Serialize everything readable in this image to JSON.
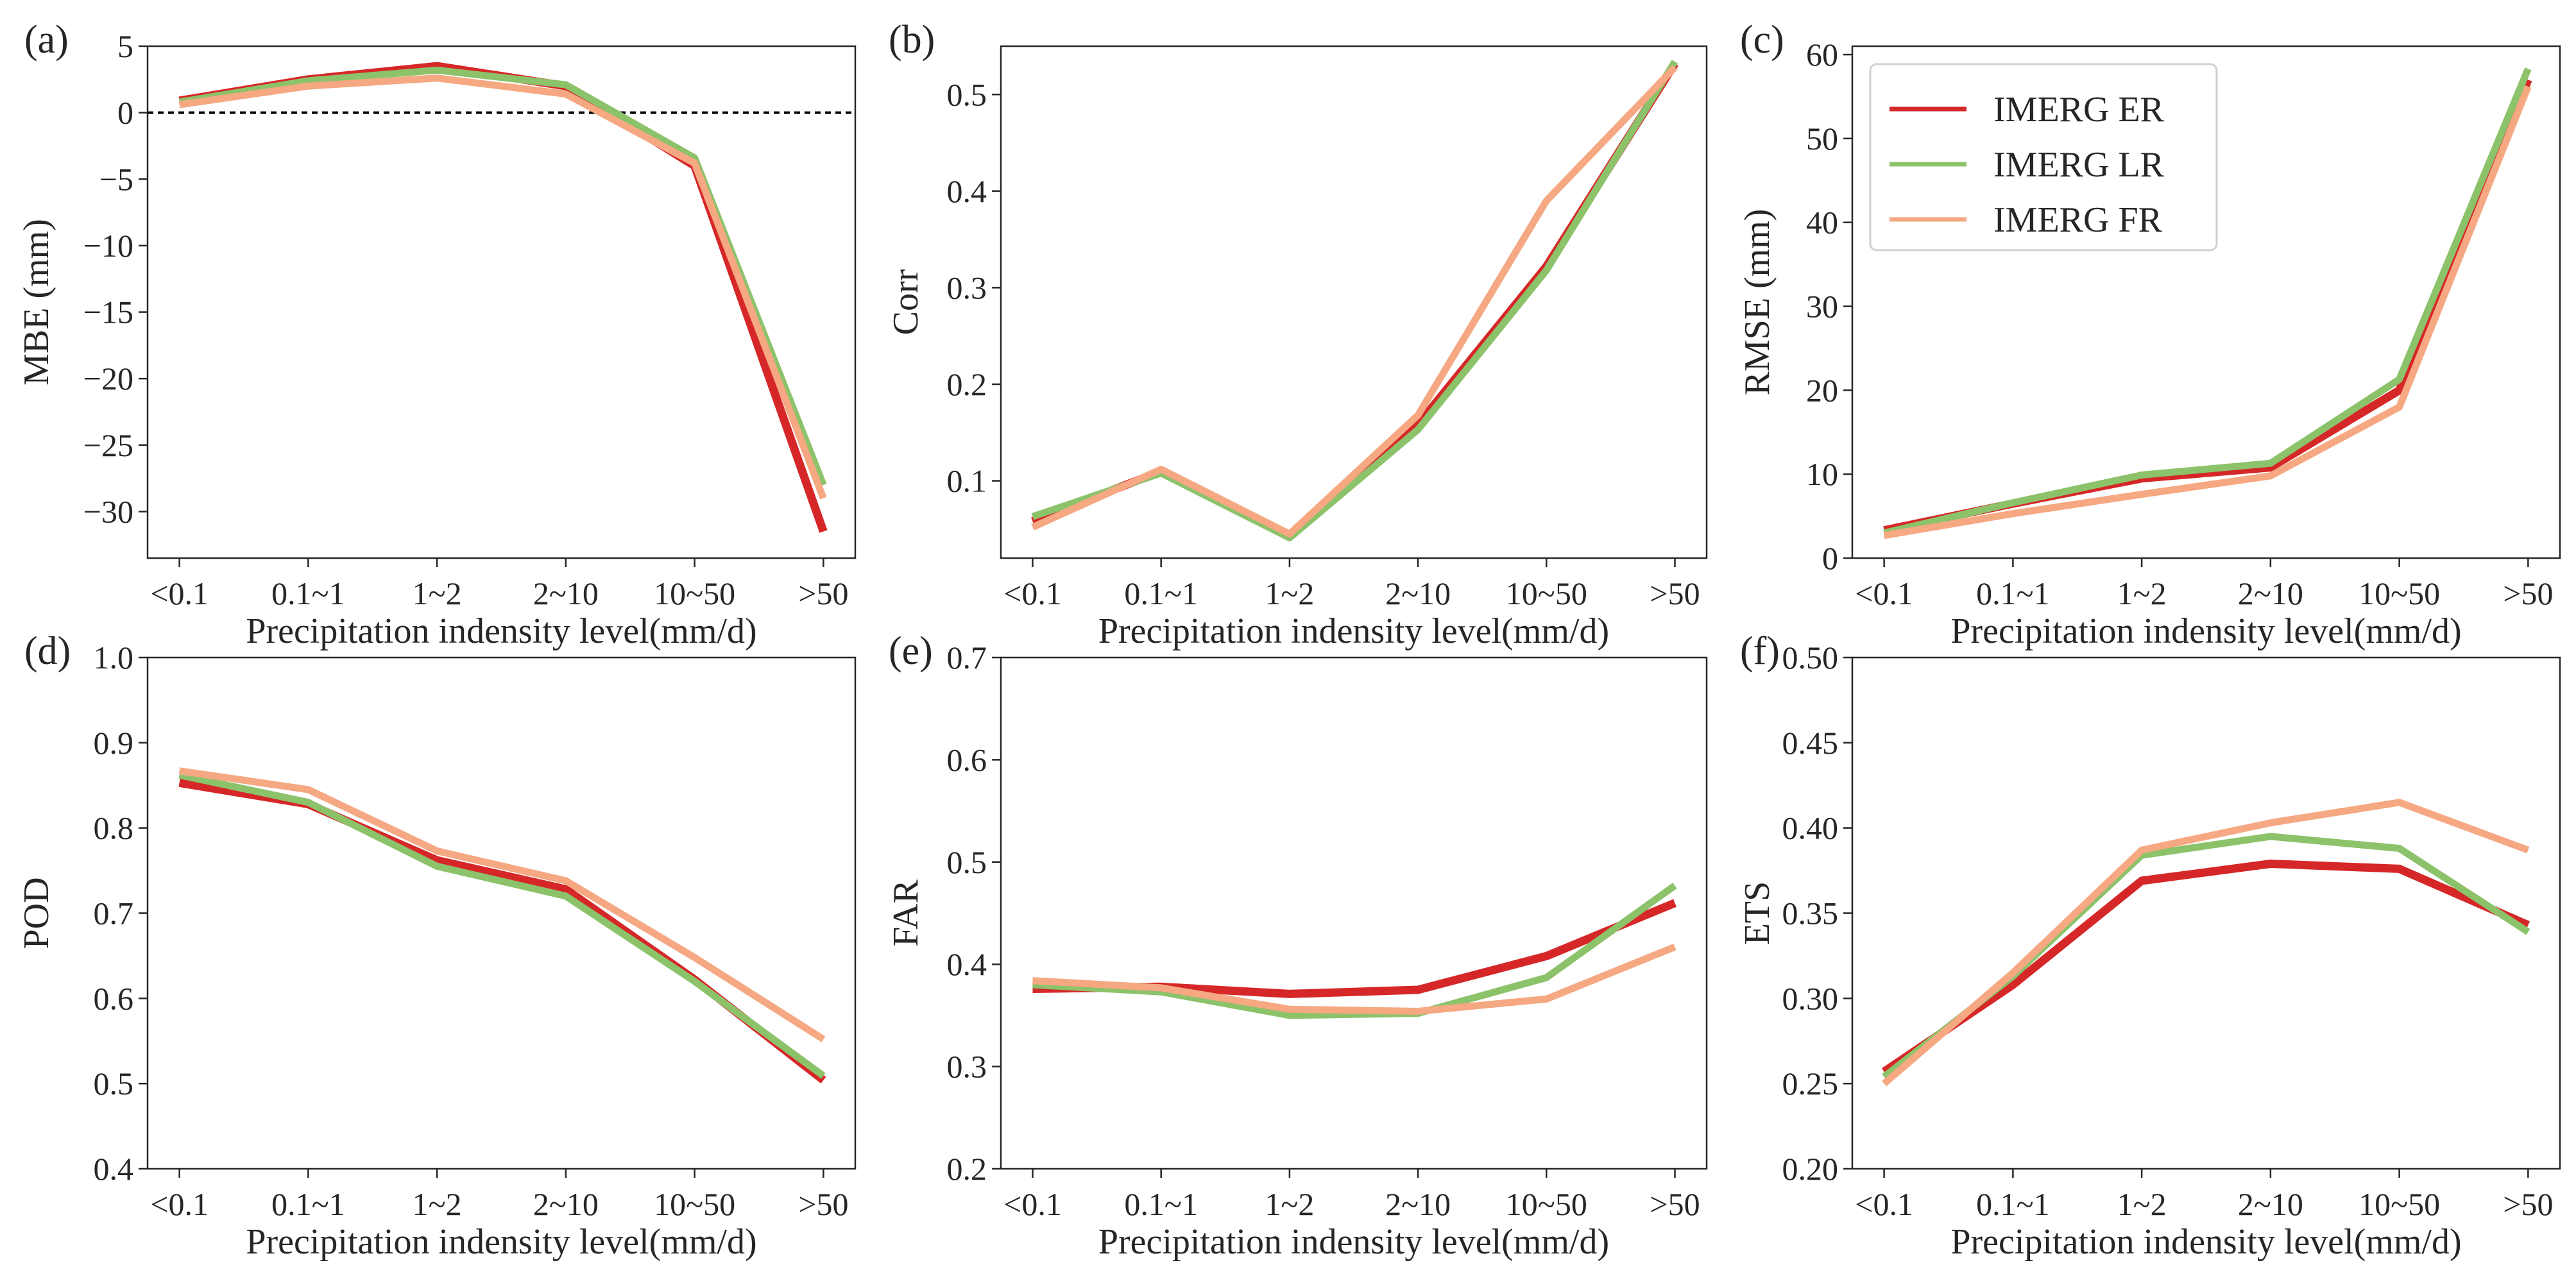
{
  "figure": {
    "series_styles": [
      {
        "name": "IMERG ER",
        "color": "#d62728"
      },
      {
        "name": "IMERG LR",
        "color": "#8cc26a"
      },
      {
        "name": "IMERG FR",
        "color": "#f5a882"
      }
    ],
    "legend": {
      "entries": [
        "IMERG ER",
        "IMERG LR",
        "IMERG FR"
      ],
      "panel": "c",
      "location": "upper-left"
    }
  },
  "chart_data": [
    {
      "id": "a",
      "panel_label": "(a)",
      "type": "line",
      "categories": [
        "<0.1",
        "0.1~1",
        "1~2",
        "2~10",
        "10~50",
        ">50"
      ],
      "xlabel": "Precipitation indensity level(mm/d)",
      "ylabel": "MBE (mm)",
      "ylim": [
        -33.5,
        5
      ],
      "yticks": [
        5,
        0,
        -5,
        -10,
        -15,
        -20,
        -25,
        -30
      ],
      "ytick_labels": [
        "5",
        "0",
        "−5",
        "−10",
        "−15",
        "−20",
        "−25",
        "−30"
      ],
      "reference_line": {
        "y": 0,
        "style": "dashed",
        "color": "#000000"
      },
      "series": [
        {
          "name": "IMERG ER",
          "values": [
            0.9,
            2.5,
            3.5,
            2.0,
            -4.0,
            -31.5
          ]
        },
        {
          "name": "IMERG LR",
          "values": [
            0.8,
            2.4,
            3.2,
            2.1,
            -3.4,
            -28.0
          ]
        },
        {
          "name": "IMERG FR",
          "values": [
            0.6,
            2.0,
            2.6,
            1.4,
            -3.8,
            -29.0
          ]
        }
      ]
    },
    {
      "id": "b",
      "panel_label": "(b)",
      "type": "line",
      "categories": [
        "<0.1",
        "0.1~1",
        "1~2",
        "2~10",
        "10~50",
        ">50"
      ],
      "xlabel": "Precipitation indensity level(mm/d)",
      "ylabel": "Corr",
      "ylim": [
        0.02,
        0.55
      ],
      "yticks": [
        0.1,
        0.2,
        0.3,
        0.4,
        0.5
      ],
      "ytick_labels": [
        "0.1",
        "0.2",
        "0.3",
        "0.4",
        "0.5"
      ],
      "series": [
        {
          "name": "IMERG ER",
          "values": [
            0.058,
            0.11,
            0.043,
            0.158,
            0.322,
            0.532
          ]
        },
        {
          "name": "IMERG LR",
          "values": [
            0.063,
            0.108,
            0.041,
            0.153,
            0.318,
            0.534
          ]
        },
        {
          "name": "IMERG FR",
          "values": [
            0.052,
            0.112,
            0.045,
            0.168,
            0.39,
            0.528
          ]
        }
      ]
    },
    {
      "id": "c",
      "panel_label": "(c)",
      "type": "line",
      "categories": [
        "<0.1",
        "0.1~1",
        "1~2",
        "2~10",
        "10~50",
        ">50"
      ],
      "xlabel": "Precipitation indensity level(mm/d)",
      "ylabel": "RMSE (mm)",
      "ylim": [
        0,
        61
      ],
      "yticks": [
        0,
        10,
        20,
        30,
        40,
        50,
        60
      ],
      "ytick_labels": [
        "0",
        "10",
        "20",
        "30",
        "40",
        "50",
        "60"
      ],
      "series": [
        {
          "name": "IMERG ER",
          "values": [
            3.3,
            6.5,
            9.5,
            10.8,
            20.0,
            57.0
          ]
        },
        {
          "name": "IMERG LR",
          "values": [
            3.0,
            6.6,
            9.9,
            11.3,
            21.3,
            58.3
          ]
        },
        {
          "name": "IMERG FR",
          "values": [
            2.7,
            5.3,
            7.6,
            9.8,
            18.0,
            56.2
          ]
        }
      ]
    },
    {
      "id": "d",
      "panel_label": "(d)",
      "type": "line",
      "categories": [
        "<0.1",
        "0.1~1",
        "1~2",
        "2~10",
        "10~50",
        ">50"
      ],
      "xlabel": "Precipitation indensity level(mm/d)",
      "ylabel": "POD",
      "ylim": [
        0.4,
        1.0
      ],
      "yticks": [
        0.4,
        0.5,
        0.6,
        0.7,
        0.8,
        0.9,
        1.0
      ],
      "ytick_labels": [
        "0.4",
        "0.5",
        "0.6",
        "0.7",
        "0.8",
        "0.9",
        "1.0"
      ],
      "series": [
        {
          "name": "IMERG ER",
          "values": [
            0.853,
            0.828,
            0.762,
            0.728,
            0.622,
            0.504
          ]
        },
        {
          "name": "IMERG LR",
          "values": [
            0.862,
            0.83,
            0.755,
            0.72,
            0.62,
            0.509
          ]
        },
        {
          "name": "IMERG FR",
          "values": [
            0.867,
            0.845,
            0.773,
            0.738,
            0.648,
            0.552
          ]
        }
      ]
    },
    {
      "id": "e",
      "panel_label": "(e)",
      "type": "line",
      "categories": [
        "<0.1",
        "0.1~1",
        "1~2",
        "2~10",
        "10~50",
        ">50"
      ],
      "xlabel": "Precipitation indensity level(mm/d)",
      "ylabel": "FAR",
      "ylim": [
        0.2,
        0.7
      ],
      "yticks": [
        0.2,
        0.3,
        0.4,
        0.5,
        0.6,
        0.7
      ],
      "ytick_labels": [
        "0.2",
        "0.3",
        "0.4",
        "0.5",
        "0.6",
        "0.7"
      ],
      "series": [
        {
          "name": "IMERG ER",
          "values": [
            0.376,
            0.378,
            0.371,
            0.375,
            0.408,
            0.46
          ]
        },
        {
          "name": "IMERG LR",
          "values": [
            0.38,
            0.373,
            0.35,
            0.352,
            0.387,
            0.477
          ]
        },
        {
          "name": "IMERG FR",
          "values": [
            0.384,
            0.377,
            0.356,
            0.354,
            0.366,
            0.417
          ]
        }
      ]
    },
    {
      "id": "f",
      "panel_label": "(f)",
      "type": "line",
      "categories": [
        "<0.1",
        "0.1~1",
        "1~2",
        "2~10",
        "10~50",
        ">50"
      ],
      "xlabel": "Precipitation indensity level(mm/d)",
      "ylabel": "ETS",
      "ylim": [
        0.2,
        0.5
      ],
      "yticks": [
        0.2,
        0.25,
        0.3,
        0.35,
        0.4,
        0.45,
        0.5
      ],
      "ytick_labels": [
        "0.20",
        "0.25",
        "0.30",
        "0.35",
        "0.40",
        "0.45",
        "0.50"
      ],
      "series": [
        {
          "name": "IMERG ER",
          "values": [
            0.257,
            0.308,
            0.369,
            0.379,
            0.376,
            0.343
          ]
        },
        {
          "name": "IMERG LR",
          "values": [
            0.254,
            0.313,
            0.384,
            0.395,
            0.388,
            0.339
          ]
        },
        {
          "name": "IMERG FR",
          "values": [
            0.25,
            0.315,
            0.387,
            0.403,
            0.415,
            0.387
          ]
        }
      ]
    }
  ]
}
